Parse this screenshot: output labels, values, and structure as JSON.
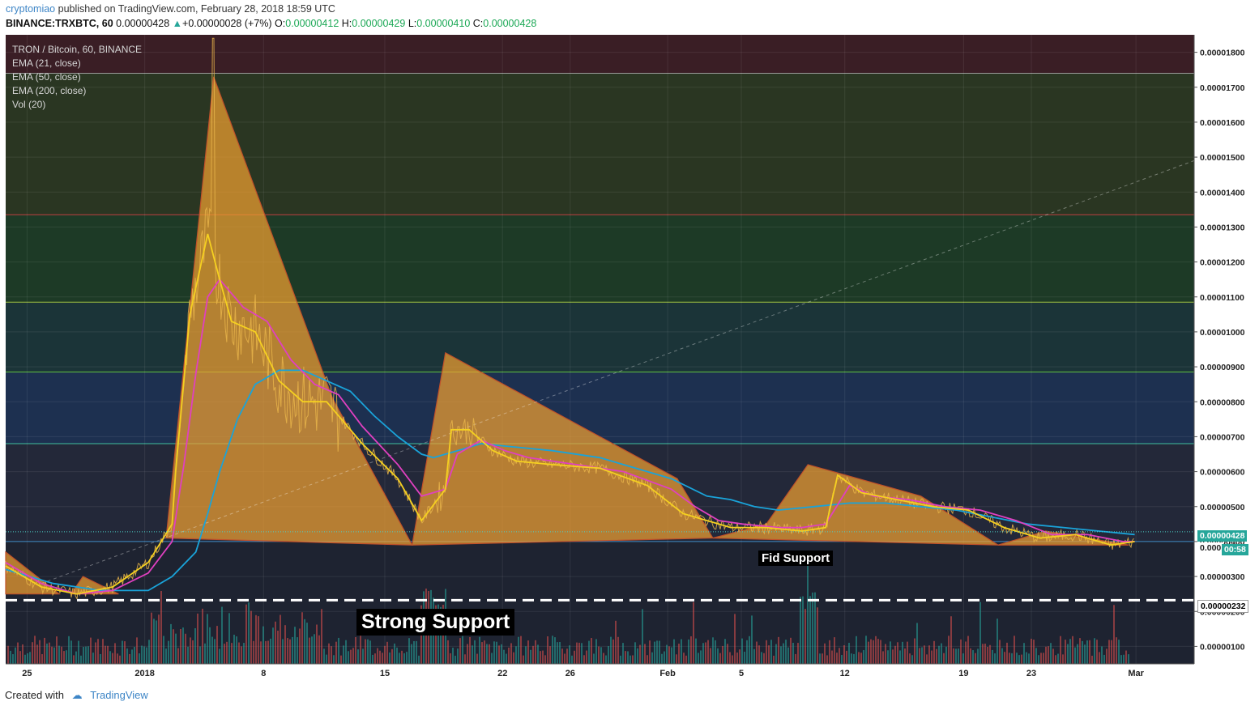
{
  "header": {
    "author": "cryptomiao",
    "published": "published on TradingView.com, February 28, 2018 18:59 UTC",
    "symbol": "BINANCE:TRXBTC, 60",
    "last": "0.00000428",
    "change": "+0.00000028 (+7%)",
    "o_label": "O:",
    "o": "0.00000412",
    "h_label": "H:",
    "h": "0.00000429",
    "l_label": "L:",
    "l": "0.00000410",
    "c_label": "C:",
    "c": "0.00000428"
  },
  "legend": {
    "title": "TRON / Bitcoin, 60, BINANCE",
    "ema21": "EMA (21, close)",
    "ema50": "EMA (50, close)",
    "ema200": "EMA (200, close)",
    "vol": "Vol (20)"
  },
  "annotations": {
    "strong_support": "Strong Support",
    "fid_support": "Fid Support"
  },
  "price_tags": {
    "last": "0.00000428",
    "timer": "00:58",
    "support": "0.00000232",
    "covered": "0.000"
  },
  "footer": {
    "created_with": "Created with",
    "brand": "TradingView"
  },
  "colors": {
    "background": "#1e2331",
    "candle": "#e8b44a",
    "ema21": "#f5d020",
    "ema50": "#e040c0",
    "ema200": "#1aa3d9",
    "triangle": "#f0a030",
    "support_line": "#ffffff"
  },
  "chart_data": {
    "type": "line",
    "title": "TRON / Bitcoin, 60, BINANCE",
    "price_axis": [
      "0.00001800",
      "0.00001700",
      "0.00001600",
      "0.00001500",
      "0.00001400",
      "0.00001300",
      "0.00001200",
      "0.00001100",
      "0.00001000",
      "0.00000900",
      "0.00000800",
      "0.00000700",
      "0.00000600",
      "0.00000500",
      "0.00000400",
      "0.00000300",
      "0.00000200",
      "0.00000100"
    ],
    "date_axis": [
      "25",
      "2018",
      "8",
      "15",
      "22",
      "26",
      "Feb",
      "5",
      "12",
      "19",
      "23",
      "Mar"
    ],
    "fib_levels": [
      1.74e-05,
      1.335e-05,
      1.085e-05,
      8.85e-06,
      6.8e-06,
      4e-06
    ],
    "fib_zone_colors": [
      "#3a1e25",
      "#2a3622",
      "#1d3a26",
      "#1b3438",
      "#1d3050",
      "#232839"
    ],
    "support_level": 2.32e-06,
    "x_range": [
      0,
      100
    ],
    "ylim": [
      5e-07,
      1.85e-05
    ],
    "series": [
      {
        "name": "EMA (21, close)",
        "color": "#f5d020",
        "x": [
          0,
          3,
          6,
          9,
          12,
          14,
          14.3,
          15.5,
          17,
          18,
          19,
          21,
          23,
          25,
          27,
          30,
          33,
          35,
          37,
          37.5,
          39,
          41,
          43,
          46,
          50,
          54,
          57,
          59,
          61,
          64,
          67,
          69,
          70,
          72,
          75,
          78,
          81,
          84,
          87,
          90,
          93,
          95
        ],
        "y": [
          3.3e-06,
          2.7e-06,
          2.5e-06,
          2.7e-06,
          3.4e-06,
          4.5e-06,
          6e-06,
          1.05e-05,
          1.28e-05,
          1.15e-05,
          1.03e-05,
          1e-05,
          8.6e-06,
          8e-06,
          8e-06,
          6.8e-06,
          5.8e-06,
          4.6e-06,
          5.5e-06,
          7.2e-06,
          7.2e-06,
          6.6e-06,
          6.3e-06,
          6.2e-06,
          6.1e-06,
          5.6e-06,
          4.8e-06,
          4.6e-06,
          4.4e-06,
          4.4e-06,
          4.3e-06,
          4.4e-06,
          5.9e-06,
          5.4e-06,
          5.2e-06,
          5e-06,
          4.9e-06,
          4.4e-06,
          4.1e-06,
          4.2e-06,
          3.9e-06,
          4e-06
        ]
      },
      {
        "name": "EMA (50, close)",
        "color": "#e040c0",
        "x": [
          0,
          3,
          6,
          9,
          12,
          14,
          15,
          16,
          17,
          18,
          20,
          22,
          24,
          26,
          28,
          30,
          33,
          35,
          37,
          38,
          40,
          42,
          44,
          48,
          52,
          56,
          58,
          60,
          62,
          65,
          67,
          69,
          71,
          73,
          76,
          79,
          82,
          85,
          88,
          91,
          94,
          95
        ],
        "y": [
          3.4e-06,
          2.8e-06,
          2.5e-06,
          2.6e-06,
          3.1e-06,
          4e-06,
          6.2e-06,
          8.8e-06,
          1.1e-05,
          1.15e-05,
          1.07e-05,
          1.03e-05,
          9.2e-06,
          8.5e-06,
          8.2e-06,
          7.3e-06,
          6.2e-06,
          5.3e-06,
          5.5e-06,
          6.5e-06,
          6.9e-06,
          6.6e-06,
          6.4e-06,
          6.2e-06,
          6e-06,
          5.5e-06,
          5e-06,
          4.6e-06,
          4.5e-06,
          4.4e-06,
          4.4e-06,
          4.5e-06,
          5.6e-06,
          5.3e-06,
          5.2e-06,
          5e-06,
          4.9e-06,
          4.6e-06,
          4.2e-06,
          4.2e-06,
          4e-06,
          4e-06
        ]
      },
      {
        "name": "EMA (200, close)",
        "color": "#1aa3d9",
        "x": [
          0,
          4,
          8,
          12,
          14,
          16,
          17,
          18,
          19.5,
          21,
          23,
          25,
          27,
          29,
          31,
          33,
          35,
          36,
          38,
          40,
          43,
          46,
          50,
          53,
          56,
          59,
          61,
          63,
          65,
          68,
          71,
          74,
          77,
          80,
          83,
          86,
          89,
          92,
          95
        ],
        "y": [
          3.2e-06,
          2.8e-06,
          2.6e-06,
          2.6e-06,
          3e-06,
          3.7e-06,
          4.8e-06,
          6e-06,
          7.5e-06,
          8.5e-06,
          8.9e-06,
          8.9e-06,
          8.6e-06,
          8.3e-06,
          7.6e-06,
          7e-06,
          6.5e-06,
          6.4e-06,
          6.6e-06,
          6.8e-06,
          6.7e-06,
          6.6e-06,
          6.4e-06,
          6.1e-06,
          5.8e-06,
          5.3e-06,
          5.2e-06,
          5e-06,
          4.9e-06,
          5e-06,
          5.1e-06,
          5.1e-06,
          5e-06,
          4.9e-06,
          4.7e-06,
          4.5e-06,
          4.4e-06,
          4.3e-06,
          4.2e-06
        ]
      }
    ],
    "triangles": [
      [
        [
          0,
          3.7e-06
        ],
        [
          4.5,
          2.5e-06
        ],
        [
          0,
          2.5e-06
        ]
      ],
      [
        [
          6.5,
          3e-06
        ],
        [
          9.5,
          2.5e-06
        ],
        [
          5.5,
          2.5e-06
        ]
      ],
      [
        [
          13.5,
          4.1e-06
        ],
        [
          17.5,
          1.73e-05
        ],
        [
          27.5,
          8.1e-06
        ],
        [
          34.2,
          3.9e-06
        ]
      ],
      [
        [
          34.2,
          3.9e-06
        ],
        [
          37,
          9.4e-06
        ],
        [
          56.5,
          5.8e-06
        ],
        [
          59.5,
          4.1e-06
        ]
      ],
      [
        [
          59.5,
          4.1e-06
        ],
        [
          64,
          4.5e-06
        ],
        [
          67.5,
          6.2e-06
        ],
        [
          77,
          5.3e-06
        ],
        [
          83.5,
          3.9e-06
        ]
      ],
      [
        [
          83.5,
          3.9e-06
        ],
        [
          87.5,
          4.3e-06
        ],
        [
          94.5,
          3.9e-06
        ]
      ]
    ],
    "trend_line": [
      [
        3,
        2.8e-06
      ],
      [
        100,
        1.49e-05
      ]
    ],
    "grid": true,
    "volume": true
  }
}
